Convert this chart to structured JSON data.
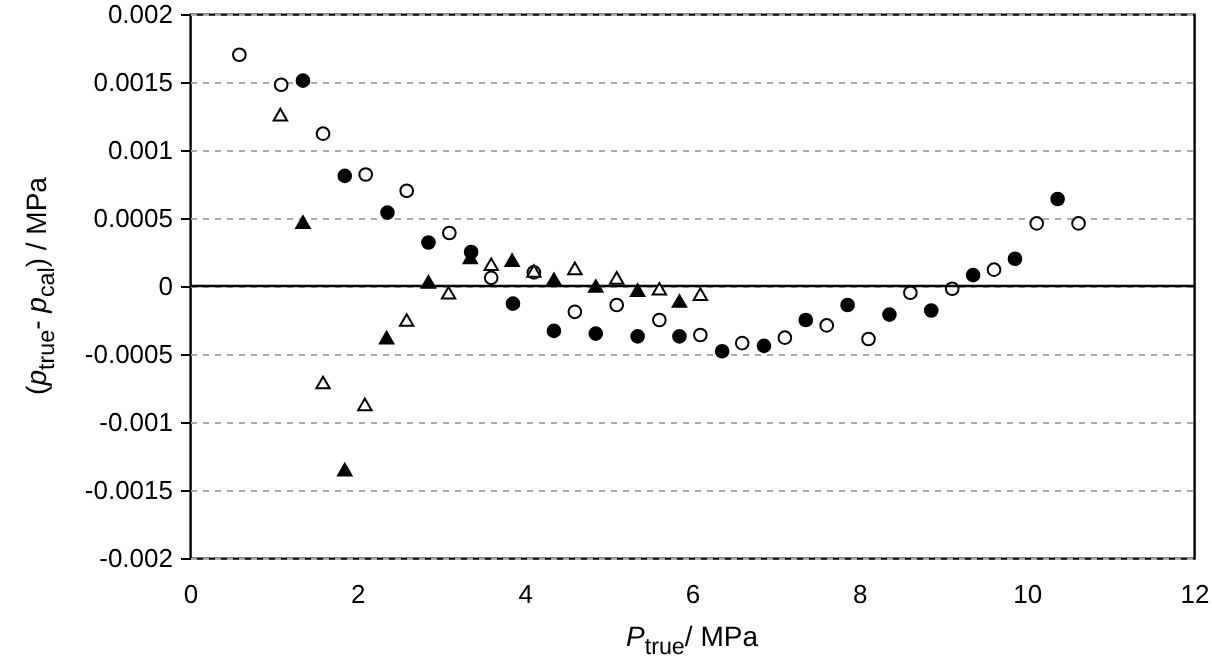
{
  "chart_data": {
    "type": "scatter",
    "xlabel": "P$_{true}$/ MPa",
    "ylabel": "(p$_{true}$- p$_{cal}$) / MPa",
    "xlim": [
      0,
      12
    ],
    "xticks": [
      0,
      2,
      4,
      6,
      8,
      10,
      12
    ],
    "ylim": [
      -0.002,
      0.002
    ],
    "yticks": [
      -0.002,
      -0.0015,
      -0.001,
      -0.0005,
      0,
      0.0005,
      0.001,
      0.0015,
      0.002
    ],
    "grid": "y",
    "ref_lines": [
      {
        "axis": "y",
        "value": 0,
        "color": "#000000"
      }
    ],
    "series": [
      {
        "color": "#ffffff",
        "marker": "circle",
        "x": [
          0.59,
          1.09,
          1.59,
          2.1,
          2.59,
          3.1,
          3.6,
          4.11,
          4.6,
          5.1,
          5.61,
          6.1,
          6.6,
          7.11,
          7.61,
          8.11,
          8.61,
          9.11,
          9.61,
          10.12,
          10.62
        ],
        "values": [
          0.0017,
          0.00148,
          0.00112,
          0.00082,
          0.0007,
          0.00039,
          6e-05,
          0.0001,
          -0.00019,
          -0.00014,
          -0.00025,
          -0.00036,
          -0.00042,
          -0.00038,
          -0.00029,
          -0.00039,
          -5e-05,
          -2e-05,
          0.00012,
          0.00046,
          0.00046
        ]
      },
      {
        "color": "#000000",
        "marker": "circle",
        "x": [
          1.35,
          1.85,
          2.36,
          2.85,
          3.36,
          3.86,
          4.35,
          4.85,
          5.35,
          5.85,
          6.36,
          6.86,
          7.36,
          7.86,
          8.36,
          8.86,
          9.36,
          9.86,
          10.37
        ],
        "values": [
          0.00151,
          0.00081,
          0.00054,
          0.00032,
          0.00025,
          -0.00013,
          -0.00033,
          -0.00035,
          -0.00037,
          -0.00037,
          -0.00048,
          -0.00044,
          -0.00025,
          -0.00014,
          -0.00021,
          -0.00018,
          8e-05,
          0.0002,
          0.00064
        ]
      },
      {
        "color": "#ffffff",
        "marker": "triangle",
        "x": [
          1.08,
          1.59,
          2.09,
          2.59,
          3.09,
          3.6,
          4.11,
          4.6,
          5.1,
          5.61,
          6.1
        ],
        "values": [
          0.00126,
          -0.00071,
          -0.00087,
          -0.00025,
          -5e-05,
          0.00016,
          0.00011,
          0.00013,
          6e-05,
          -2e-05,
          -6e-05
        ]
      },
      {
        "color": "#000000",
        "marker": "triangle",
        "x": [
          1.35,
          1.85,
          2.35,
          2.85,
          3.35,
          3.85,
          4.35,
          4.85,
          5.35,
          5.85
        ],
        "values": [
          0.00047,
          -0.00135,
          -0.00038,
          3e-05,
          0.00021,
          0.00019,
          5e-05,
          0.0,
          -3e-05,
          -0.00011
        ]
      }
    ]
  }
}
